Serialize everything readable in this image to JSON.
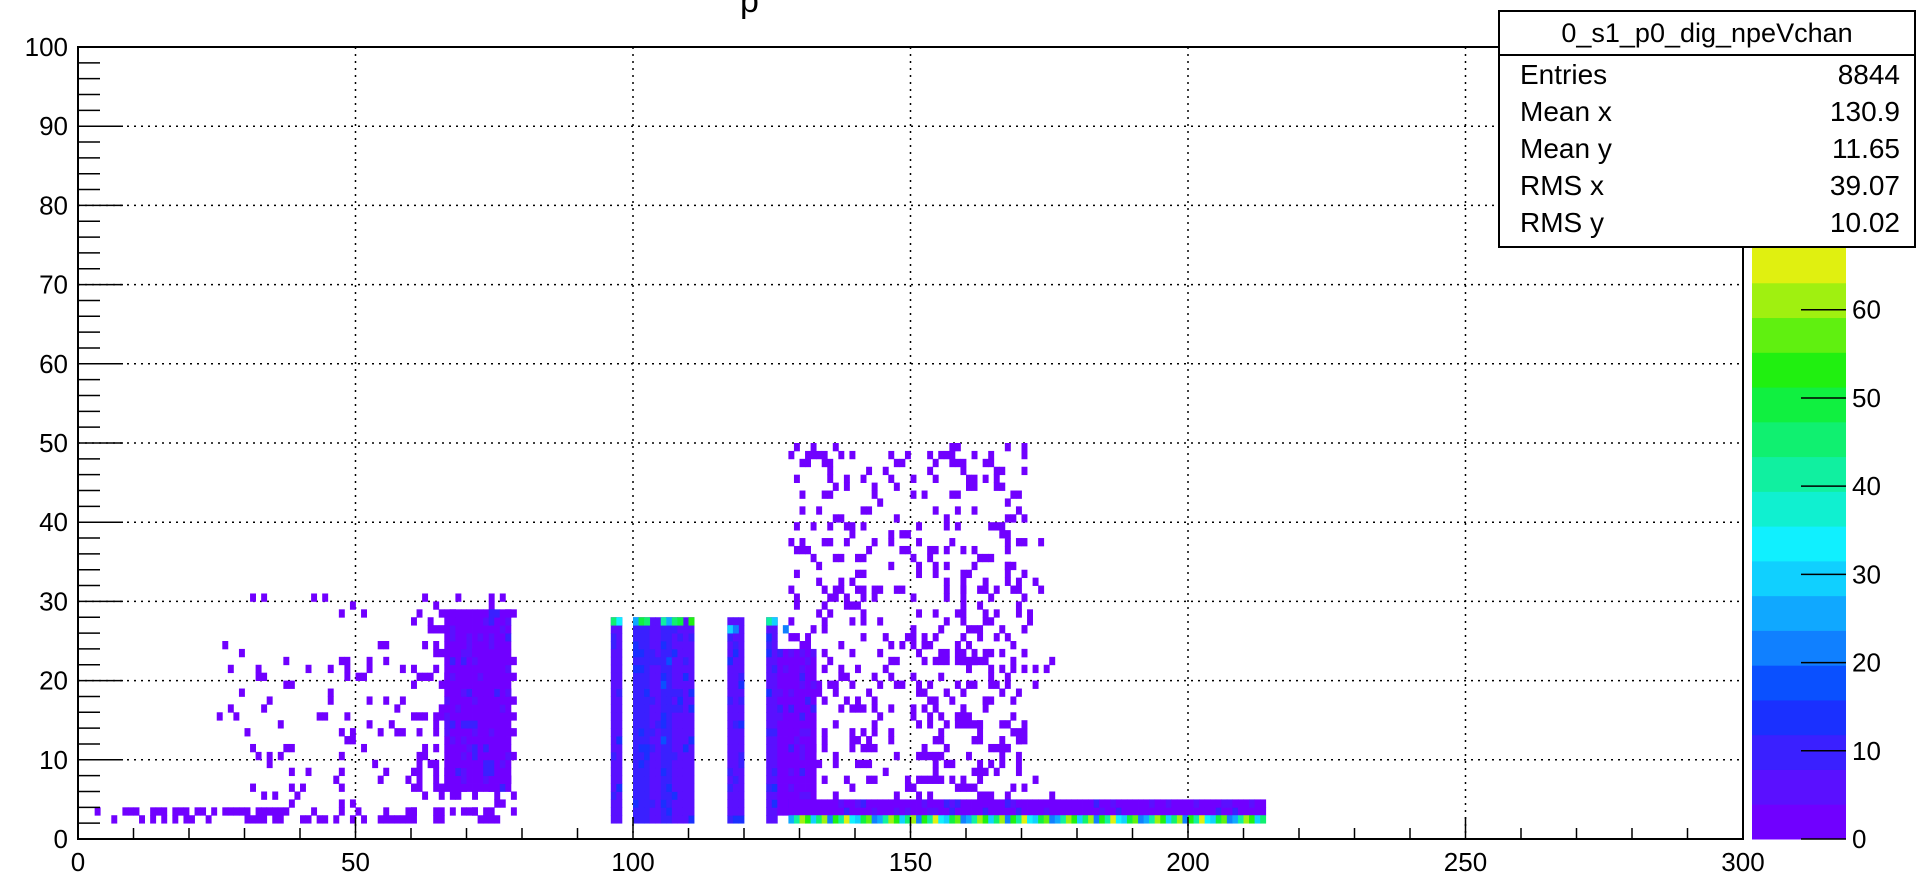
{
  "title_fragment": "p",
  "stats": {
    "title": "0_s1_p0_dig_npeVchan",
    "rows": [
      {
        "label": "Entries",
        "value": "8844"
      },
      {
        "label": "Mean x",
        "value": "130.9"
      },
      {
        "label": "Mean y",
        "value": "11.65"
      },
      {
        "label": "RMS x",
        "value": "39.07"
      },
      {
        "label": "RMS y",
        "value": "10.02"
      }
    ]
  },
  "chart_data": {
    "type": "heatmap",
    "title": "",
    "xlabel": "",
    "ylabel": "",
    "xlim": [
      0,
      300
    ],
    "ylim": [
      0,
      100
    ],
    "x_ticks": [
      0,
      50,
      100,
      150,
      200,
      250,
      300
    ],
    "y_ticks": [
      0,
      10,
      20,
      30,
      40,
      50,
      60,
      70,
      80,
      90,
      100
    ],
    "zlim": [
      0,
      67
    ],
    "z_ticks": [
      0,
      10,
      20,
      30,
      40,
      50,
      60
    ],
    "grid": true,
    "bin_width_x": 1,
    "bin_width_y": 1,
    "palette": [
      "#7000ff",
      "#5a10ff",
      "#3a20ff",
      "#1a30ff",
      "#0a50ff",
      "#1080ff",
      "#10a8ff",
      "#10d0ff",
      "#10f0ff",
      "#10f0d0",
      "#10f0a0",
      "#10f070",
      "#10f040",
      "#20f010",
      "#60f010",
      "#a0f010",
      "#e0f010"
    ],
    "dense_regions": [
      {
        "x": [
          96,
          97
        ],
        "y": [
          2,
          27
        ],
        "z": 6
      },
      {
        "x": [
          100,
          102
        ],
        "y": [
          2,
          27
        ],
        "z": 8
      },
      {
        "x": [
          103,
          104
        ],
        "y": [
          2,
          27
        ],
        "z": 4
      },
      {
        "x": [
          105,
          106
        ],
        "y": [
          2,
          27
        ],
        "z": 8
      },
      {
        "x": [
          107,
          110
        ],
        "y": [
          2,
          27
        ],
        "z": 7
      },
      {
        "x": [
          117,
          119
        ],
        "y": [
          2,
          27
        ],
        "z": 6
      },
      {
        "x": [
          124,
          125
        ],
        "y": [
          2,
          27
        ],
        "z": 6
      },
      {
        "x": [
          66,
          77
        ],
        "y": [
          6,
          28
        ],
        "z": 2
      },
      {
        "x": [
          126,
          132
        ],
        "y": [
          3,
          23
        ],
        "z": 2
      },
      {
        "x": [
          128,
          174
        ],
        "y": [
          3,
          4
        ],
        "z": 3
      },
      {
        "x": [
          175,
          213
        ],
        "y": [
          3,
          4
        ],
        "z": 2
      }
    ],
    "top_row_bins": [
      {
        "x": 96,
        "y": 27,
        "z": 45
      },
      {
        "x": 97,
        "y": 27,
        "z": 35
      },
      {
        "x": 100,
        "y": 27,
        "z": 25
      },
      {
        "x": 101,
        "y": 27,
        "z": 50
      },
      {
        "x": 102,
        "y": 27,
        "z": 45
      },
      {
        "x": 105,
        "y": 27,
        "z": 40
      },
      {
        "x": 106,
        "y": 27,
        "z": 25
      },
      {
        "x": 107,
        "y": 27,
        "z": 45
      },
      {
        "x": 108,
        "y": 27,
        "z": 50
      },
      {
        "x": 110,
        "y": 27,
        "z": 55
      },
      {
        "x": 117,
        "y": 26,
        "z": 30
      },
      {
        "x": 118,
        "y": 26,
        "z": 22
      },
      {
        "x": 124,
        "y": 27,
        "z": 40
      },
      {
        "x": 125,
        "y": 27,
        "z": 30
      },
      {
        "x": 127,
        "y": 26,
        "z": 20
      }
    ],
    "bottom_row": {
      "x": [
        128,
        213
      ],
      "y": 2,
      "z_levels": [
        24,
        40,
        60,
        52,
        30,
        45,
        60,
        20,
        55,
        40,
        65,
        35,
        28,
        50,
        58,
        22
      ]
    },
    "scatter_regions": [
      {
        "x": [
          3,
          75
        ],
        "y": [
          2,
          3
        ],
        "z": 3,
        "density": 0.5
      },
      {
        "x": [
          25,
          60
        ],
        "y": [
          4,
          30
        ],
        "z": 1,
        "density": 0.08
      },
      {
        "x": [
          60,
          78
        ],
        "y": [
          3,
          30
        ],
        "z": 1,
        "density": 0.2
      },
      {
        "x": [
          128,
          170
        ],
        "y": [
          5,
          49
        ],
        "z": 1,
        "density": 0.22
      },
      {
        "x": [
          150,
          175
        ],
        "y": [
          3,
          37
        ],
        "z": 1,
        "density": 0.08
      }
    ]
  }
}
